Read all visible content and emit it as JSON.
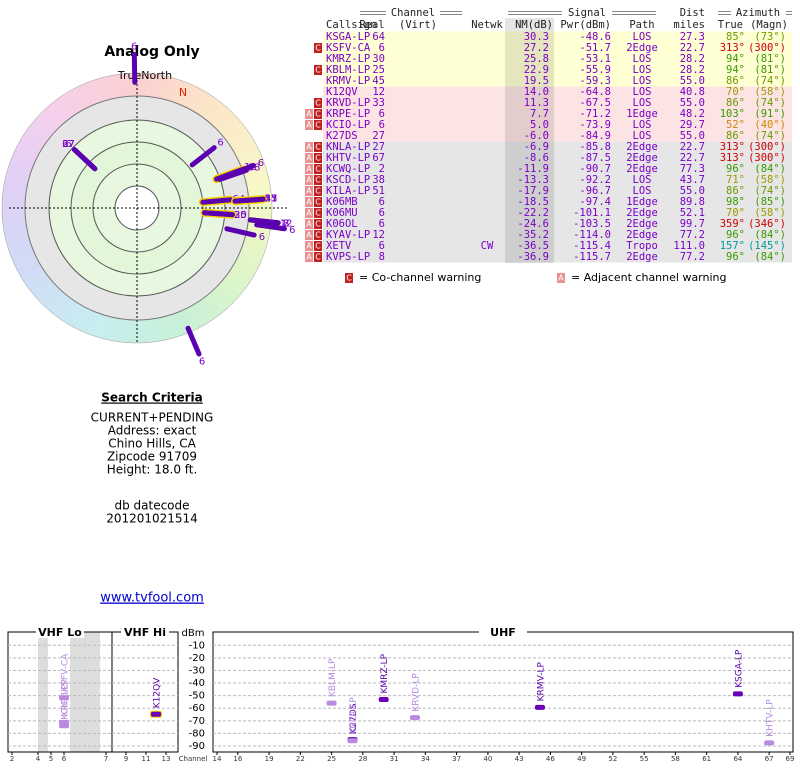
{
  "polar": {
    "title": "Analog Only",
    "north_label": "TrueNorth",
    "n_marker": "N"
  },
  "table": {
    "headers": {
      "channel": "Channel",
      "signal": "Signal",
      "dist": "Dist",
      "azimuth": "Azimuth",
      "callsign": "Callsign",
      "real": "Real",
      "virt": "(Virt)",
      "netwk": "Netwk",
      "nm": "NM(dB)",
      "pwr": "Pwr(dBm)",
      "path": "Path",
      "miles": "miles",
      "true": "True",
      "magn": "(Magn)"
    },
    "rows": [
      {
        "callsign": "KSGA-LP",
        "real": 64,
        "nm": "30.3",
        "pwr": "-48.6",
        "path": "LOS",
        "dist": "27.3",
        "true": "85°",
        "magn": "(73°)",
        "bg": "#ffffd4",
        "az_color": "#6a9a00"
      },
      {
        "callsign": "KSFV-CA",
        "real": 6,
        "nm": "27.2",
        "pwr": "-51.7",
        "path": "2Edge",
        "dist": "22.7",
        "true": "313°",
        "magn": "(300°)",
        "bg": "#ffffd4",
        "az_color": "#cc0000",
        "warnings": [
          "C"
        ]
      },
      {
        "callsign": "KMRZ-LP",
        "real": 30,
        "nm": "25.8",
        "pwr": "-53.1",
        "path": "LOS",
        "dist": "28.2",
        "true": "94°",
        "magn": "(81°)",
        "bg": "#ffffd4",
        "az_color": "#3a9a00"
      },
      {
        "callsign": "KBLM-LP",
        "real": 25,
        "nm": "22.9",
        "pwr": "-55.9",
        "path": "LOS",
        "dist": "28.2",
        "true": "94°",
        "magn": "(81°)",
        "bg": "#ffffd4",
        "az_color": "#3a9a00",
        "warnings": [
          "C"
        ]
      },
      {
        "callsign": "KRMV-LP",
        "real": 45,
        "nm": "19.5",
        "pwr": "-59.3",
        "path": "LOS",
        "dist": "55.0",
        "true": "86°",
        "magn": "(74°)",
        "bg": "#ffffd4",
        "az_color": "#6a9a00"
      },
      {
        "callsign": "K12QV",
        "real": 12,
        "nm": "14.0",
        "pwr": "-64.8",
        "path": "LOS",
        "dist": "40.8",
        "true": "70°",
        "magn": "(58°)",
        "bg": "#fde4e4",
        "az_color": "#9a9a00"
      },
      {
        "callsign": "KRVD-LP",
        "real": 33,
        "nm": "11.3",
        "pwr": "-67.5",
        "path": "LOS",
        "dist": "55.0",
        "true": "86°",
        "magn": "(74°)",
        "bg": "#fde4e4",
        "az_color": "#6a9a00",
        "warnings": [
          "C"
        ]
      },
      {
        "callsign": "KRPE-LP",
        "real": 6,
        "nm": "7.7",
        "pwr": "-71.2",
        "path": "1Edge",
        "dist": "48.2",
        "true": "103°",
        "magn": "(91°)",
        "bg": "#fde4e4",
        "az_color": "#3a9a00",
        "warnings": [
          "A",
          "C"
        ]
      },
      {
        "callsign": "KCIO-LP",
        "real": 6,
        "nm": "5.0",
        "pwr": "-73.9",
        "path": "LOS",
        "dist": "29.7",
        "true": "52°",
        "magn": "(40°)",
        "bg": "#fde4e4",
        "az_color": "#cc8800",
        "warnings": [
          "A",
          "C"
        ]
      },
      {
        "callsign": "K27DS",
        "real": 27,
        "nm": "-6.0",
        "pwr": "-84.9",
        "path": "LOS",
        "dist": "55.0",
        "true": "86°",
        "magn": "(74°)",
        "bg": "#fde4e4",
        "az_color": "#6a9a00"
      },
      {
        "callsign": "KNLA-LP",
        "real": 27,
        "nm": "-6.9",
        "pwr": "-85.8",
        "path": "2Edge",
        "dist": "22.7",
        "true": "313°",
        "magn": "(300°)",
        "bg": "#e6e6e6",
        "az_color": "#cc0000",
        "warnings": [
          "A",
          "C"
        ]
      },
      {
        "callsign": "KHTV-LP",
        "real": 67,
        "nm": "-8.6",
        "pwr": "-87.5",
        "path": "2Edge",
        "dist": "22.7",
        "true": "313°",
        "magn": "(300°)",
        "bg": "#e6e6e6",
        "az_color": "#cc0000",
        "warnings": [
          "A",
          "C"
        ]
      },
      {
        "callsign": "KCWQ-LP",
        "real": 2,
        "nm": "-11.9",
        "pwr": "-90.7",
        "path": "2Edge",
        "dist": "77.3",
        "true": "96°",
        "magn": "(84°)",
        "bg": "#e6e6e6",
        "az_color": "#3a9a00",
        "warnings": [
          "A",
          "C"
        ]
      },
      {
        "callsign": "KSCD-LP",
        "real": 38,
        "nm": "-13.3",
        "pwr": "-92.2",
        "path": "LOS",
        "dist": "43.7",
        "true": "71°",
        "magn": "(58°)",
        "bg": "#e6e6e6",
        "az_color": "#9a9a00",
        "warnings": [
          "A",
          "C"
        ]
      },
      {
        "callsign": "KILA-LP",
        "real": 51,
        "nm": "-17.9",
        "pwr": "-96.7",
        "path": "LOS",
        "dist": "55.0",
        "true": "86°",
        "magn": "(74°)",
        "bg": "#e6e6e6",
        "az_color": "#6a9a00",
        "warnings": [
          "A",
          "C"
        ]
      },
      {
        "callsign": "K06MB",
        "real": 6,
        "nm": "-18.5",
        "pwr": "-97.4",
        "path": "1Edge",
        "dist": "89.8",
        "true": "98°",
        "magn": "(85°)",
        "bg": "#e6e6e6",
        "az_color": "#3a9a00",
        "warnings": [
          "A",
          "C"
        ]
      },
      {
        "callsign": "K06MU",
        "real": 6,
        "nm": "-22.2",
        "pwr": "-101.1",
        "path": "2Edge",
        "dist": "52.1",
        "true": "70°",
        "magn": "(58°)",
        "bg": "#e6e6e6",
        "az_color": "#9a9a00",
        "warnings": [
          "A",
          "C"
        ]
      },
      {
        "callsign": "K06OL",
        "real": 6,
        "nm": "-24.6",
        "pwr": "-103.5",
        "path": "2Edge",
        "dist": "99.7",
        "true": "359°",
        "magn": "(346°)",
        "bg": "#e6e6e6",
        "az_color": "#cc0000",
        "warnings": [
          "A",
          "C"
        ]
      },
      {
        "callsign": "KYAV-LP",
        "real": 12,
        "nm": "-35.2",
        "pwr": "-114.0",
        "path": "2Edge",
        "dist": "77.2",
        "true": "96°",
        "magn": "(84°)",
        "bg": "#e6e6e6",
        "az_color": "#3a9a00",
        "warnings": [
          "A",
          "C"
        ]
      },
      {
        "callsign": "XETV",
        "real": 6,
        "netwk": "CW",
        "nm": "-36.5",
        "pwr": "-115.4",
        "path": "Tropo",
        "dist": "111.0",
        "true": "157°",
        "magn": "(145°)",
        "bg": "#e6e6e6",
        "az_color": "#009999",
        "warnings": [
          "A",
          "C"
        ]
      },
      {
        "callsign": "KVPS-LP",
        "real": 8,
        "nm": "-36.9",
        "pwr": "-115.7",
        "path": "2Edge",
        "dist": "77.2",
        "true": "96°",
        "magn": "(84°)",
        "bg": "#e6e6e6",
        "az_color": "#3a9a00",
        "warnings": [
          "A",
          "C"
        ]
      }
    ]
  },
  "legend": {
    "co_icon": "C",
    "co_text": "= Co-channel warning",
    "adj_icon": "A",
    "adj_text": "= Adjacent channel warning"
  },
  "search": {
    "heading": "Search Criteria",
    "lines": [
      "CURRENT+PENDING",
      "Address: exact",
      "Chino Hills, CA",
      "Zipcode 91709",
      "Height: 18.0 ft."
    ],
    "datecode_label": "db datecode",
    "datecode": "201201021514"
  },
  "link": "www.tvfool.com",
  "spectrum": {
    "unit": "dBm",
    "x_label": "Channel",
    "ylim": [
      -5,
      -90
    ],
    "yticks": [
      -10,
      -20,
      -30,
      -40,
      -50,
      -60,
      -70,
      -80,
      -90
    ],
    "panels": [
      {
        "name": "VHF Lo",
        "xlim": [
          2,
          6
        ],
        "xticks": [
          2,
          4,
          5,
          6
        ]
      },
      {
        "name": "VHF Hi",
        "xlim": [
          7,
          13
        ],
        "xticks": [
          7,
          9,
          11,
          13
        ]
      },
      {
        "name": "UHF",
        "xlim": [
          14,
          69
        ],
        "xticks": [
          14,
          16,
          19,
          22,
          25,
          28,
          31,
          34,
          37,
          40,
          43,
          46,
          49,
          52,
          55,
          58,
          61,
          64,
          67,
          69
        ]
      }
    ]
  }
}
